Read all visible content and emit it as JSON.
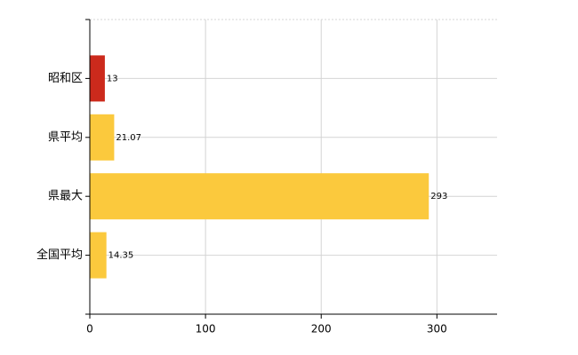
{
  "chart_data": {
    "type": "bar",
    "orientation": "horizontal",
    "categories": [
      "昭和区",
      "県平均",
      "県最大",
      "全国平均"
    ],
    "values": [
      13,
      21.07,
      293,
      14.35
    ],
    "colors": [
      "#cc2a1c",
      "#fbc93d",
      "#fbc93d",
      "#fbc93d"
    ],
    "xlim": [
      0,
      352
    ],
    "xticks": [
      0,
      100,
      200,
      300
    ],
    "grid": true
  }
}
